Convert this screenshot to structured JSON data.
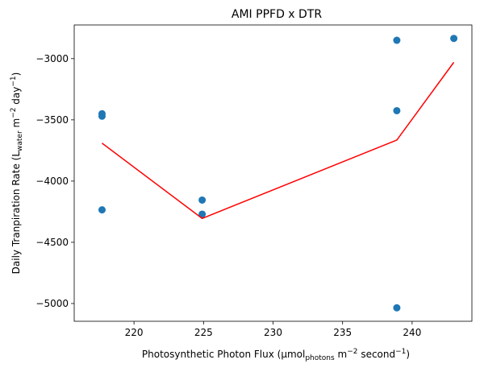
{
  "chart_data": {
    "type": "scatter",
    "title": "AMI PPFD x DTR",
    "xlabel": {
      "main": "Photosynthetic Photon Flux (μmol",
      "sub": "photons",
      "mid": " m",
      "sup1": "−2",
      "mid2": " second",
      "sup2": "−1",
      "end": ")"
    },
    "ylabel": {
      "main": "Daily Tranpiration Rate (L",
      "sub": "water",
      "mid": " m",
      "sup1": "−2",
      "mid2": " day",
      "sup2": "−1",
      "end": ")"
    },
    "xlim": [
      215.7,
      244.3
    ],
    "ylim": [
      -5145,
      -2725
    ],
    "xticks": [
      220,
      225,
      230,
      235,
      240
    ],
    "xtick_labels": [
      "220",
      "225",
      "230",
      "235",
      "240"
    ],
    "yticks": [
      -5000,
      -4500,
      -4000,
      -3500,
      -3000
    ],
    "ytick_labels": [
      "−5000",
      "−4500",
      "−4000",
      "−3500",
      "−3000"
    ],
    "grid": false,
    "colors": {
      "points": "#1f77b4",
      "line": "#ff0000"
    },
    "series": [
      {
        "kind": "scatter",
        "points": [
          {
            "x": 217.7,
            "y": -3450
          },
          {
            "x": 217.7,
            "y": -3470
          },
          {
            "x": 217.7,
            "y": -4235
          },
          {
            "x": 224.9,
            "y": -4155
          },
          {
            "x": 224.9,
            "y": -4270
          },
          {
            "x": 238.9,
            "y": -2850
          },
          {
            "x": 238.9,
            "y": -3425
          },
          {
            "x": 238.9,
            "y": -5035
          },
          {
            "x": 243.0,
            "y": -2835
          }
        ]
      },
      {
        "kind": "line",
        "points": [
          {
            "x": 217.7,
            "y": -3690
          },
          {
            "x": 224.9,
            "y": -4305
          },
          {
            "x": 238.9,
            "y": -3665
          },
          {
            "x": 243.0,
            "y": -3030
          }
        ]
      }
    ]
  }
}
